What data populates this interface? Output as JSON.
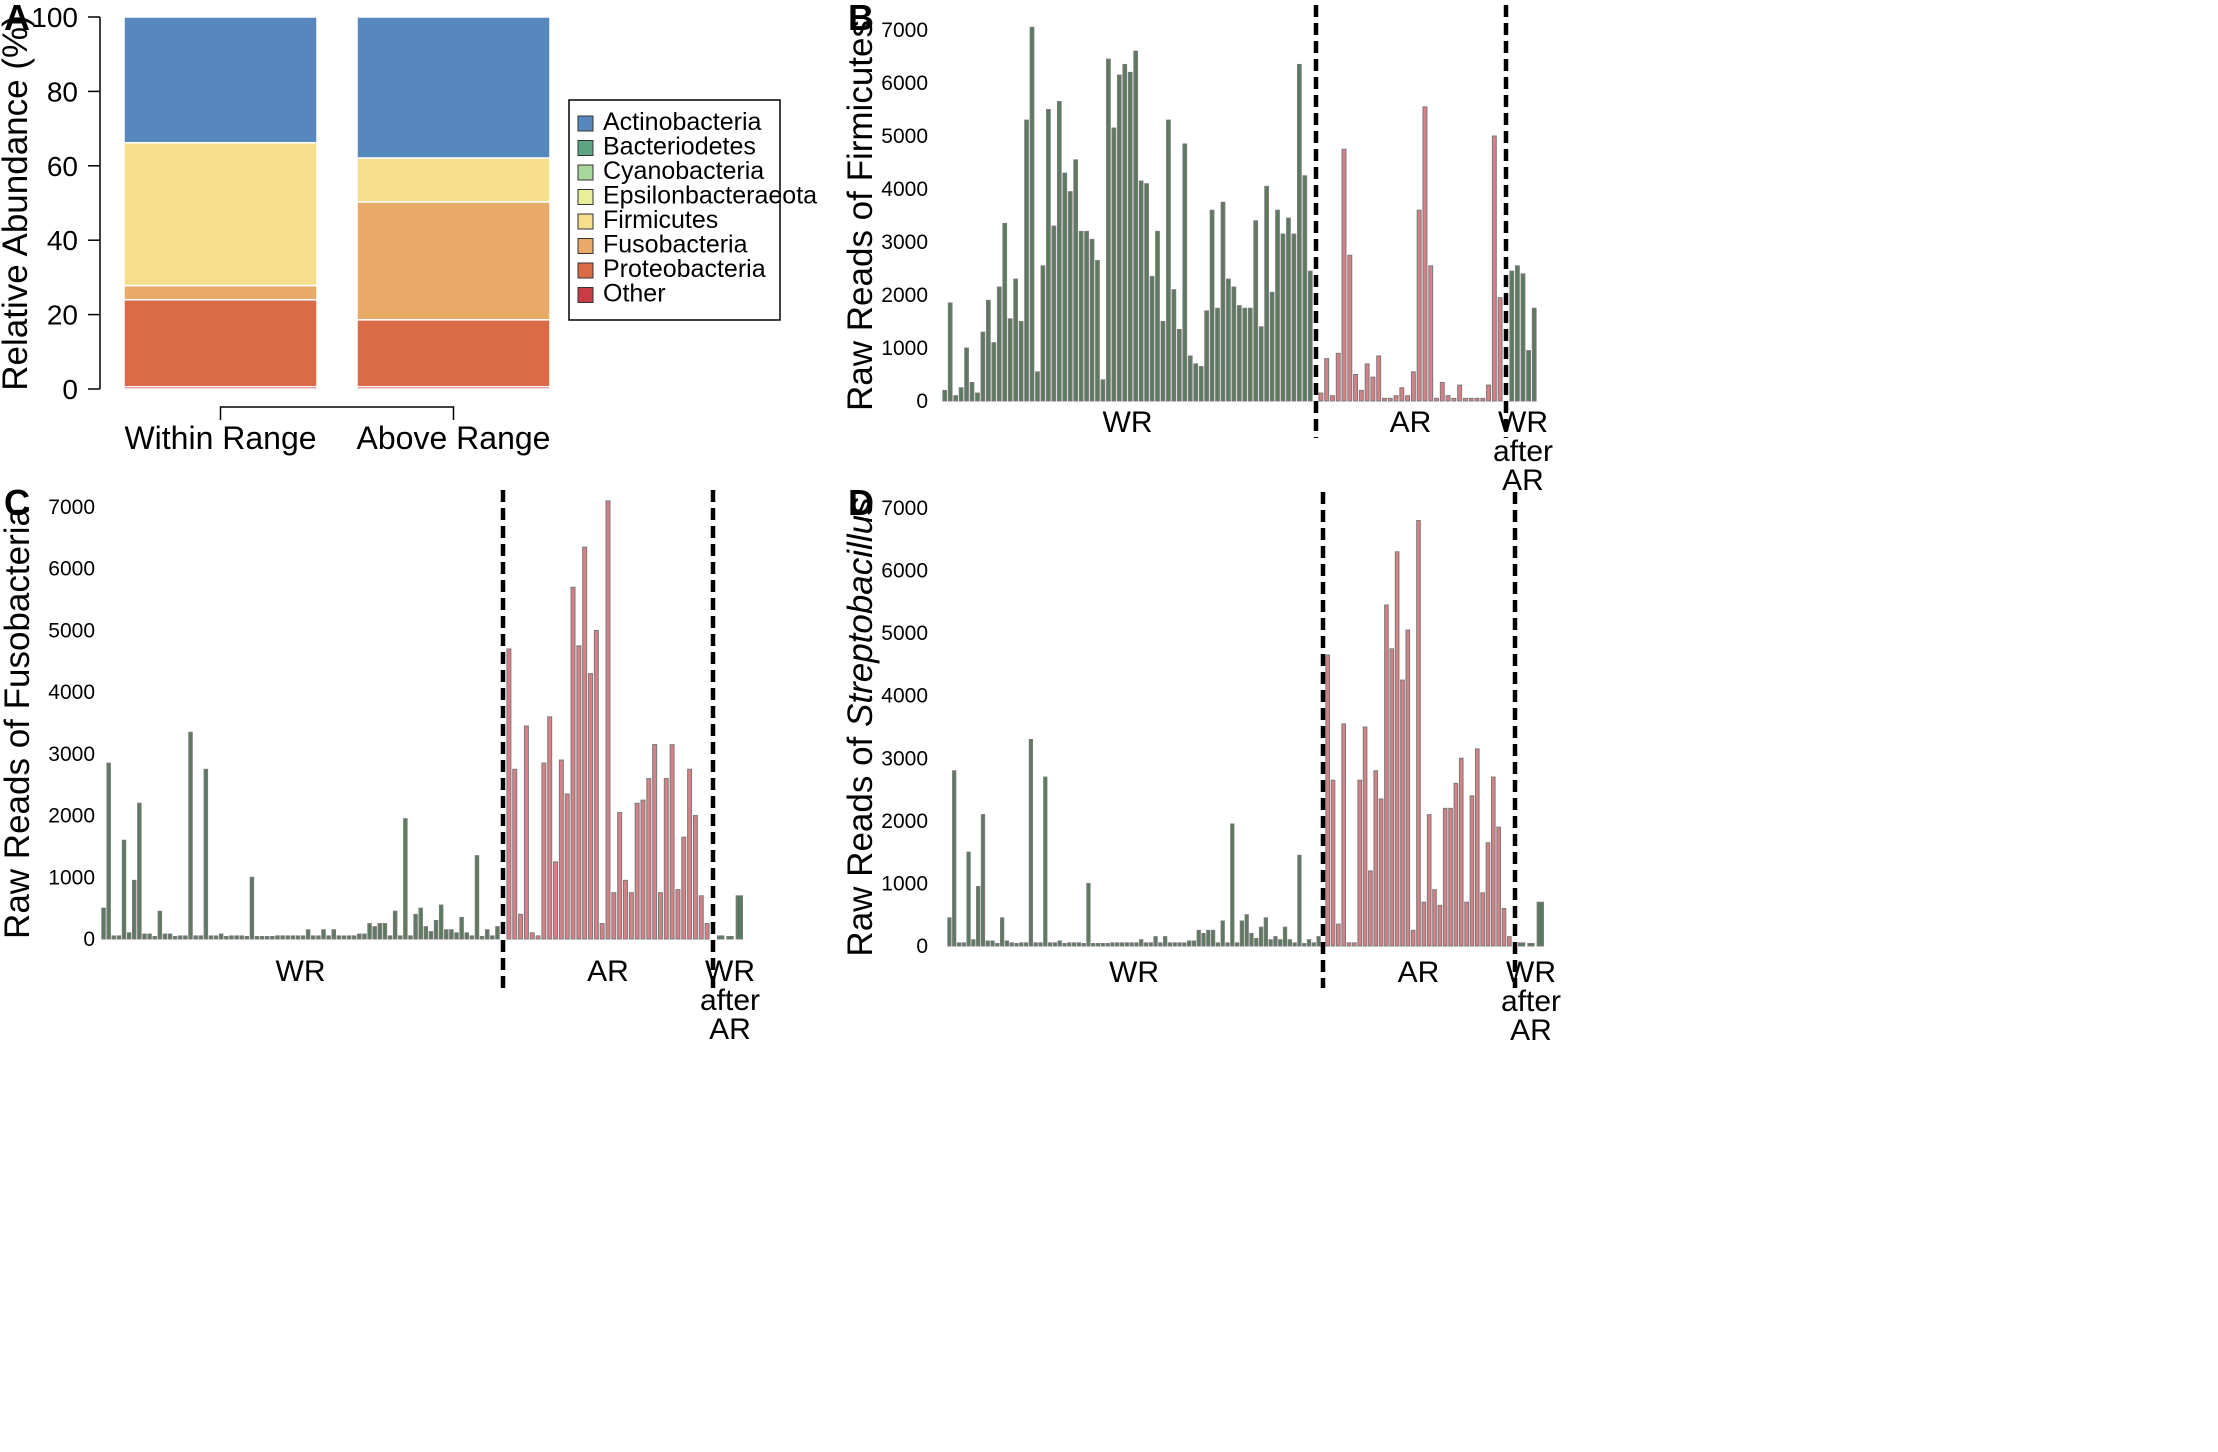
{
  "colors": {
    "Actinobacteria": "#5688BE",
    "Bacteriodetes": "#5BA583",
    "Cyanobacteria": "#A8D79D",
    "Epsilonbacteraeota": "#E8EE99",
    "Firmicutes": "#F5DE8C",
    "Fusobacteria": "#E9A967",
    "Proteobacteria": "#DB6B47",
    "Other": "#C93B45",
    "WR_bar": "#5B7B5E",
    "AR_bar": "#D88085",
    "bar_edge": "#7A7A7A",
    "divider": "#000000"
  },
  "chart_data": [
    {
      "panel": "A",
      "type": "bar",
      "stacked": true,
      "ylabel": "Relative Abundance (%)",
      "ylim": [
        0,
        100
      ],
      "yticks": [
        "0",
        "20",
        "40",
        "60",
        "80",
        "100"
      ],
      "categories": [
        "Within Range",
        "Above Range"
      ],
      "legend_position": "right",
      "series": [
        {
          "name": "Other",
          "values": [
            0.6,
            0.6
          ]
        },
        {
          "name": "Proteobacteria",
          "values": [
            23.4,
            18.0
          ]
        },
        {
          "name": "Fusobacteria",
          "values": [
            3.8,
            31.7
          ]
        },
        {
          "name": "Firmicutes",
          "values": [
            38.4,
            11.8
          ]
        },
        {
          "name": "Epsilonbacteraeota",
          "values": [
            0,
            0
          ]
        },
        {
          "name": "Cyanobacteria",
          "values": [
            0,
            0
          ]
        },
        {
          "name": "Bacteriodetes",
          "values": [
            0,
            0
          ]
        },
        {
          "name": "Actinobacteria",
          "values": [
            33.8,
            37.9
          ]
        }
      ],
      "legend": [
        "Actinobacteria",
        "Bacteriodetes",
        "Cyanobacteria",
        "Epsilonbacteraeota",
        "Firmicutes",
        "Fusobacteria",
        "Proteobacteria",
        "Other"
      ]
    },
    {
      "panel": "B",
      "type": "bar",
      "ylabel": "Raw Reads of Firmicutes",
      "ylim": [
        0,
        7000
      ],
      "yticks": [
        "0",
        "1000",
        "2000",
        "3000",
        "4000",
        "5000",
        "6000",
        "7000"
      ],
      "groups": [
        {
          "label": [
            "WR"
          ],
          "category": "WR",
          "values": [
            200,
            1850,
            100,
            250,
            1000,
            350,
            150,
            1300,
            1900,
            1100,
            2150,
            3350,
            1550,
            2300,
            1500,
            5300,
            7050,
            550,
            2550,
            5500,
            3300,
            5650,
            4300,
            3950,
            4550,
            3200,
            3200,
            3050,
            2650,
            400,
            6450,
            5150,
            6150,
            6350,
            6200,
            6600,
            4150,
            4100,
            2350,
            3200,
            1500,
            5300,
            2100,
            1350,
            4850,
            850,
            700,
            650,
            1700,
            3600,
            1750,
            3750,
            2300,
            2150,
            1800,
            1750,
            1750,
            3400,
            1400,
            4050,
            2050,
            3600,
            3150,
            3450,
            3150,
            6350,
            4250,
            2450
          ]
        },
        {
          "label": [
            "AR"
          ],
          "category": "AR",
          "values": [
            150,
            800,
            100,
            900,
            4750,
            2750,
            500,
            200,
            700,
            450,
            850,
            50,
            50,
            100,
            250,
            100,
            550,
            3600,
            5550,
            2550,
            50,
            350,
            100,
            50,
            300,
            50,
            50,
            50,
            50,
            300,
            5000,
            1950
          ]
        },
        {
          "label": [
            "WR",
            "after",
            "AR"
          ],
          "category": "WR",
          "values": [
            2450,
            2550,
            2400,
            950,
            1750
          ]
        }
      ]
    },
    {
      "panel": "C",
      "type": "bar",
      "ylabel": "Raw Reads of Fusobacteria",
      "ylim": [
        0,
        7000
      ],
      "yticks": [
        "0",
        "1000",
        "2000",
        "3000",
        "4000",
        "5000",
        "6000",
        "7000"
      ],
      "groups": [
        {
          "label": [
            "WR"
          ],
          "category": "WR",
          "values": [
            500,
            2850,
            50,
            50,
            1600,
            100,
            950,
            2200,
            80,
            80,
            0,
            450,
            80,
            80,
            0,
            50,
            50,
            3350,
            50,
            50,
            2750,
            50,
            50,
            80,
            0,
            50,
            50,
            50,
            0,
            1000,
            0,
            0,
            0,
            0,
            50,
            50,
            50,
            50,
            50,
            50,
            150,
            50,
            50,
            150,
            50,
            150,
            50,
            50,
            50,
            50,
            80,
            80,
            250,
            200,
            250,
            250,
            50,
            450,
            50,
            1950,
            50,
            400,
            500,
            200,
            120,
            300,
            550,
            150,
            150,
            100,
            350,
            100,
            50,
            1350,
            0,
            150,
            50,
            200
          ]
        },
        {
          "label": [
            "AR"
          ],
          "category": "AR",
          "values": [
            4700,
            2750,
            400,
            3450,
            100,
            50,
            2850,
            3600,
            1250,
            2900,
            2350,
            5700,
            4750,
            6350,
            4300,
            5000,
            250,
            7100,
            750,
            2050,
            950,
            750,
            2200,
            2250,
            2600,
            3150,
            750,
            2600,
            3150,
            800,
            1650,
            2750,
            2000,
            700,
            250
          ]
        },
        {
          "label": [
            "WR",
            "after",
            "AR"
          ],
          "category": "WR",
          "values": [
            50,
            0,
            700
          ]
        }
      ]
    },
    {
      "panel": "D",
      "type": "bar",
      "ylabel_parts": [
        {
          "text": "Raw Reads of ",
          "italic": false
        },
        {
          "text": "Streptobacillus",
          "italic": true
        }
      ],
      "ylim": [
        0,
        7000
      ],
      "yticks": [
        "0",
        "1000",
        "2000",
        "3000",
        "4000",
        "5000",
        "6000",
        "7000"
      ],
      "groups": [
        {
          "label": [
            "WR"
          ],
          "category": "WR",
          "values": [
            450,
            2800,
            50,
            50,
            1500,
            100,
            950,
            2100,
            80,
            80,
            0,
            450,
            80,
            50,
            0,
            50,
            50,
            3300,
            50,
            50,
            2700,
            50,
            50,
            80,
            0,
            50,
            50,
            50,
            0,
            1000,
            0,
            0,
            0,
            0,
            50,
            50,
            50,
            50,
            50,
            50,
            100,
            50,
            50,
            150,
            50,
            150,
            50,
            50,
            50,
            50,
            80,
            80,
            250,
            200,
            250,
            250,
            50,
            400,
            50,
            1950,
            50,
            400,
            500,
            200,
            120,
            300,
            450,
            100,
            150,
            100,
            300,
            100,
            50,
            1450,
            0,
            100,
            50,
            150
          ]
        },
        {
          "label": [
            "AR"
          ],
          "category": "AR",
          "values": [
            4650,
            2650,
            350,
            3550,
            50,
            50,
            2650,
            3500,
            1200,
            2800,
            2350,
            5450,
            4750,
            6300,
            4250,
            5050,
            250,
            6800,
            700,
            2100,
            900,
            650,
            2200,
            2200,
            2600,
            3000,
            700,
            2400,
            3150,
            850,
            1650,
            2700,
            1900,
            600,
            150
          ]
        },
        {
          "label": [
            "WR",
            "after",
            "AR"
          ],
          "category": "WR",
          "values": [
            50,
            0,
            700
          ]
        }
      ]
    }
  ]
}
